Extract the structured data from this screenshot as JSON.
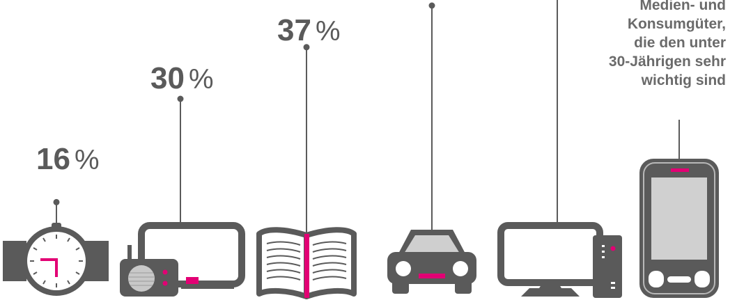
{
  "chart_data": {
    "type": "bar",
    "categories": [
      "watch",
      "tv-radio",
      "book",
      "car",
      "computer",
      "smartphone"
    ],
    "icons": [
      "watch-icon",
      "tv-radio-icon",
      "book-icon",
      "car-icon",
      "computer-icon",
      "smartphone-icon"
    ],
    "values": [
      16,
      30,
      37,
      null,
      null,
      null
    ],
    "value_suffix": "%",
    "caption_lines": [
      "Medien- und",
      "Konsumgüter,",
      "die den unter",
      "30-Jährigen sehr",
      "wichtig sind"
    ]
  },
  "colors": {
    "ink": "#5a5a5a",
    "accent": "#e20074",
    "screen": "#d0d0d0"
  },
  "labels": [
    {
      "num": "16",
      "sym": "%"
    },
    {
      "num": "30",
      "sym": "%"
    },
    {
      "num": "37",
      "sym": "%"
    }
  ]
}
